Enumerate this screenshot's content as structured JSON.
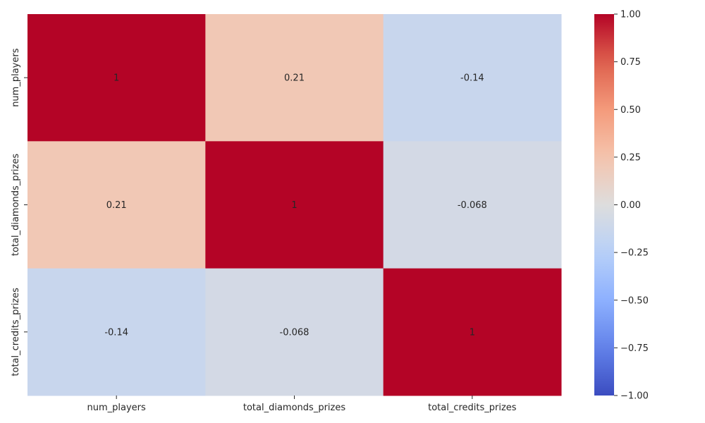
{
  "chart_data": {
    "type": "heatmap",
    "title": "",
    "rows": [
      "num_players",
      "total_diamonds_prizes",
      "total_credits_prizes"
    ],
    "columns": [
      "num_players",
      "total_diamonds_prizes",
      "total_credits_prizes"
    ],
    "values": [
      [
        1,
        0.21,
        -0.14
      ],
      [
        0.21,
        1,
        -0.068
      ],
      [
        -0.14,
        -0.068,
        1
      ]
    ],
    "annotations": [
      [
        "1",
        "0.21",
        "-0.14"
      ],
      [
        "0.21",
        "1",
        "-0.068"
      ],
      [
        "-0.14",
        "-0.068",
        "1"
      ]
    ],
    "colormap": "coolwarm",
    "vmin": -1,
    "vmax": 1,
    "colorbar_ticks": [
      1.0,
      0.75,
      0.5,
      0.25,
      0.0,
      -0.25,
      -0.5,
      -0.75,
      -1.0
    ],
    "colorbar_tick_labels": [
      "1.00",
      "0.75",
      "0.50",
      "0.25",
      "0.00",
      "−0.25",
      "−0.50",
      "−0.75",
      "−1.00"
    ],
    "colors": {
      "low": "#3b4cc0",
      "mid": "#dddddd",
      "high": "#b40426",
      "text": "#262626"
    }
  }
}
